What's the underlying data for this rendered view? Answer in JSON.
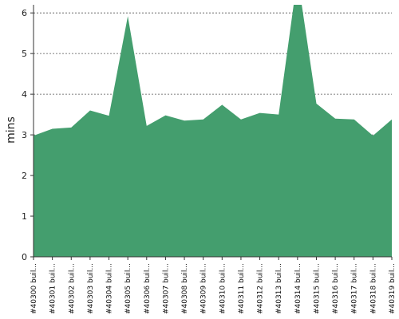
{
  "chart_data": {
    "type": "area",
    "title": "",
    "xlabel": "",
    "ylabel": "mins",
    "ylim": [
      0,
      6.2
    ],
    "yticks": [
      0,
      1,
      2,
      3,
      4,
      5,
      6
    ],
    "grid": true,
    "fill_color": "#449e6e",
    "categories": [
      "#40300 buil...",
      "#40301 buil...",
      "#40302 buil...",
      "#40303 buil...",
      "#40304 buil...",
      "#40305 buil...",
      "#40306 buil...",
      "#40307 buil...",
      "#40308 buil...",
      "#40309 buil...",
      "#40310 buil...",
      "#40311 buil...",
      "#40312 buil...",
      "#40313 buil...",
      "#40314 buil...",
      "#40315 buil...",
      "#40316 buil...",
      "#40317 buil...",
      "#40318 buil...",
      "#40319 buil..."
    ],
    "values": [
      2.98,
      3.15,
      3.18,
      3.6,
      3.47,
      5.92,
      3.22,
      3.48,
      3.35,
      3.38,
      3.74,
      3.38,
      3.54,
      3.5,
      6.9,
      3.77,
      3.4,
      3.38,
      2.98,
      3.38
    ]
  }
}
